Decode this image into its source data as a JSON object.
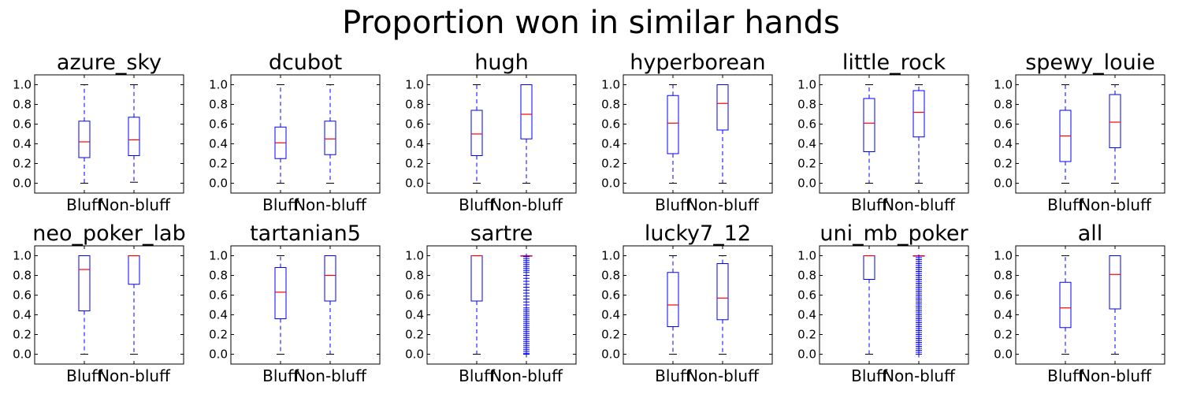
{
  "figure": {
    "title": "Proportion won in similar hands"
  },
  "chart_data": [
    {
      "type": "box",
      "title": "azure_sky",
      "categories": [
        "Bluff",
        "Non-bluff"
      ],
      "ylim": [
        -0.1,
        1.1
      ],
      "yticks": [
        "0.0",
        "0.2",
        "0.4",
        "0.6",
        "0.8",
        "1.0"
      ],
      "boxes": [
        {
          "whislo": 0.0,
          "q1": 0.26,
          "med": 0.42,
          "q3": 0.63,
          "whishi": 1.0,
          "fliers": []
        },
        {
          "whislo": 0.01,
          "q1": 0.28,
          "med": 0.44,
          "q3": 0.67,
          "whishi": 1.0,
          "fliers": []
        }
      ]
    },
    {
      "type": "box",
      "title": "dcubot",
      "categories": [
        "Bluff",
        "Non-bluff"
      ],
      "ylim": [
        -0.1,
        1.1
      ],
      "yticks": [
        "0.0",
        "0.2",
        "0.4",
        "0.6",
        "0.8",
        "1.0"
      ],
      "boxes": [
        {
          "whislo": 0.0,
          "q1": 0.25,
          "med": 0.41,
          "q3": 0.57,
          "whishi": 1.0,
          "fliers": []
        },
        {
          "whislo": 0.0,
          "q1": 0.29,
          "med": 0.45,
          "q3": 0.63,
          "whishi": 1.0,
          "fliers": []
        }
      ]
    },
    {
      "type": "box",
      "title": "hugh",
      "categories": [
        "Bluff",
        "Non-bluff"
      ],
      "ylim": [
        -0.1,
        1.1
      ],
      "yticks": [
        "0.0",
        "0.2",
        "0.4",
        "0.6",
        "0.8",
        "1.0"
      ],
      "boxes": [
        {
          "whislo": 0.0,
          "q1": 0.28,
          "med": 0.5,
          "q3": 0.74,
          "whishi": 1.0,
          "fliers": []
        },
        {
          "whislo": 0.0,
          "q1": 0.45,
          "med": 0.7,
          "q3": 1.0,
          "whishi": 1.0,
          "fliers": []
        }
      ]
    },
    {
      "type": "box",
      "title": "hyperborean",
      "categories": [
        "Bluff",
        "Non-bluff"
      ],
      "ylim": [
        -0.1,
        1.1
      ],
      "yticks": [
        "0.0",
        "0.2",
        "0.4",
        "0.6",
        "0.8",
        "1.0"
      ],
      "boxes": [
        {
          "whislo": 0.0,
          "q1": 0.3,
          "med": 0.61,
          "q3": 0.89,
          "whishi": 1.0,
          "fliers": []
        },
        {
          "whislo": 0.0,
          "q1": 0.54,
          "med": 0.81,
          "q3": 1.0,
          "whishi": 1.0,
          "fliers": []
        }
      ]
    },
    {
      "type": "box",
      "title": "little_rock",
      "categories": [
        "Bluff",
        "Non-bluff"
      ],
      "ylim": [
        -0.1,
        1.1
      ],
      "yticks": [
        "0.0",
        "0.2",
        "0.4",
        "0.6",
        "0.8",
        "1.0"
      ],
      "boxes": [
        {
          "whislo": 0.0,
          "q1": 0.32,
          "med": 0.61,
          "q3": 0.86,
          "whishi": 1.0,
          "fliers": []
        },
        {
          "whislo": 0.0,
          "q1": 0.47,
          "med": 0.72,
          "q3": 0.94,
          "whishi": 1.0,
          "fliers": []
        }
      ]
    },
    {
      "type": "box",
      "title": "spewy_louie",
      "categories": [
        "Bluff",
        "Non-bluff"
      ],
      "ylim": [
        -0.1,
        1.1
      ],
      "yticks": [
        "0.0",
        "0.2",
        "0.4",
        "0.6",
        "0.8",
        "1.0"
      ],
      "boxes": [
        {
          "whislo": 0.0,
          "q1": 0.22,
          "med": 0.48,
          "q3": 0.74,
          "whishi": 1.0,
          "fliers": []
        },
        {
          "whislo": 0.0,
          "q1": 0.36,
          "med": 0.62,
          "q3": 0.9,
          "whishi": 1.0,
          "fliers": []
        }
      ]
    },
    {
      "type": "box",
      "title": "neo_poker_lab",
      "categories": [
        "Bluff",
        "Non-bluff"
      ],
      "ylim": [
        -0.1,
        1.1
      ],
      "yticks": [
        "0.0",
        "0.2",
        "0.4",
        "0.6",
        "0.8",
        "1.0"
      ],
      "boxes": [
        {
          "whislo": 0.0,
          "q1": 0.44,
          "med": 0.86,
          "q3": 1.0,
          "whishi": 1.0,
          "fliers": []
        },
        {
          "whislo": 0.0,
          "q1": 0.71,
          "med": 1.0,
          "q3": 1.0,
          "whishi": 1.0,
          "fliers": []
        }
      ]
    },
    {
      "type": "box",
      "title": "tartanian5",
      "categories": [
        "Bluff",
        "Non-bluff"
      ],
      "ylim": [
        -0.1,
        1.1
      ],
      "yticks": [
        "0.0",
        "0.2",
        "0.4",
        "0.6",
        "0.8",
        "1.0"
      ],
      "boxes": [
        {
          "whislo": 0.0,
          "q1": 0.36,
          "med": 0.63,
          "q3": 0.88,
          "whishi": 1.0,
          "fliers": []
        },
        {
          "whislo": 0.0,
          "q1": 0.54,
          "med": 0.8,
          "q3": 1.0,
          "whishi": 1.0,
          "fliers": []
        }
      ]
    },
    {
      "type": "box",
      "title": "sartre",
      "categories": [
        "Bluff",
        "Non-bluff"
      ],
      "ylim": [
        -0.1,
        1.1
      ],
      "yticks": [
        "0.0",
        "0.2",
        "0.4",
        "0.6",
        "0.8",
        "1.0"
      ],
      "boxes": [
        {
          "whislo": 0.0,
          "q1": 0.54,
          "med": 1.0,
          "q3": 1.0,
          "whishi": 1.0,
          "fliers": []
        },
        {
          "whislo": 1.0,
          "q1": 1.0,
          "med": 1.0,
          "q3": 1.0,
          "whishi": 1.0,
          "fliers": [
            0.0,
            0.01,
            0.03,
            0.05,
            0.07,
            0.09,
            0.11,
            0.13,
            0.15,
            0.17,
            0.19,
            0.21,
            0.23,
            0.25,
            0.27,
            0.29,
            0.31,
            0.33,
            0.35,
            0.37,
            0.39,
            0.41,
            0.43,
            0.45,
            0.47,
            0.5,
            0.53,
            0.56,
            0.59,
            0.62,
            0.65,
            0.68,
            0.71,
            0.74,
            0.77,
            0.8,
            0.83,
            0.85,
            0.87,
            0.89,
            0.91,
            0.93,
            0.95,
            0.97,
            0.99
          ]
        }
      ]
    },
    {
      "type": "box",
      "title": "lucky7_12",
      "categories": [
        "Bluff",
        "Non-bluff"
      ],
      "ylim": [
        -0.1,
        1.1
      ],
      "yticks": [
        "0.0",
        "0.2",
        "0.4",
        "0.6",
        "0.8",
        "1.0"
      ],
      "boxes": [
        {
          "whislo": 0.0,
          "q1": 0.28,
          "med": 0.5,
          "q3": 0.83,
          "whishi": 1.0,
          "fliers": []
        },
        {
          "whislo": 0.0,
          "q1": 0.35,
          "med": 0.57,
          "q3": 0.92,
          "whishi": 1.0,
          "fliers": []
        }
      ]
    },
    {
      "type": "box",
      "title": "uni_mb_poker",
      "categories": [
        "Bluff",
        "Non-bluff"
      ],
      "ylim": [
        -0.1,
        1.1
      ],
      "yticks": [
        "0.0",
        "0.2",
        "0.4",
        "0.6",
        "0.8",
        "1.0"
      ],
      "boxes": [
        {
          "whislo": 0.0,
          "q1": 0.76,
          "med": 1.0,
          "q3": 1.0,
          "whishi": 1.0,
          "fliers": []
        },
        {
          "whislo": 1.0,
          "q1": 1.0,
          "med": 1.0,
          "q3": 1.0,
          "whishi": 1.0,
          "fliers": [
            0.0,
            0.02,
            0.04,
            0.06,
            0.08,
            0.1,
            0.12,
            0.14,
            0.16,
            0.18,
            0.2,
            0.22,
            0.24,
            0.26,
            0.28,
            0.3,
            0.32,
            0.34,
            0.36,
            0.38,
            0.4,
            0.42,
            0.44,
            0.46,
            0.48,
            0.5,
            0.52,
            0.54,
            0.56,
            0.58,
            0.6,
            0.62,
            0.64,
            0.66,
            0.68,
            0.7,
            0.72,
            0.74,
            0.76,
            0.78,
            0.8,
            0.82,
            0.84,
            0.86,
            0.88,
            0.9,
            0.92,
            0.94,
            0.96,
            0.98
          ]
        }
      ]
    },
    {
      "type": "box",
      "title": "all",
      "categories": [
        "Bluff",
        "Non-bluff"
      ],
      "ylim": [
        -0.1,
        1.1
      ],
      "yticks": [
        "0.0",
        "0.2",
        "0.4",
        "0.6",
        "0.8",
        "1.0"
      ],
      "boxes": [
        {
          "whislo": 0.0,
          "q1": 0.27,
          "med": 0.47,
          "q3": 0.73,
          "whishi": 1.0,
          "fliers": []
        },
        {
          "whislo": 0.0,
          "q1": 0.46,
          "med": 0.81,
          "q3": 1.0,
          "whishi": 1.0,
          "fliers": []
        }
      ]
    }
  ],
  "colors": {
    "box": "#0000ff",
    "median": "#ff0000",
    "whisker": "#0000ff",
    "cap": "#000000",
    "flier": "#0000ff",
    "axes": "#000000"
  }
}
